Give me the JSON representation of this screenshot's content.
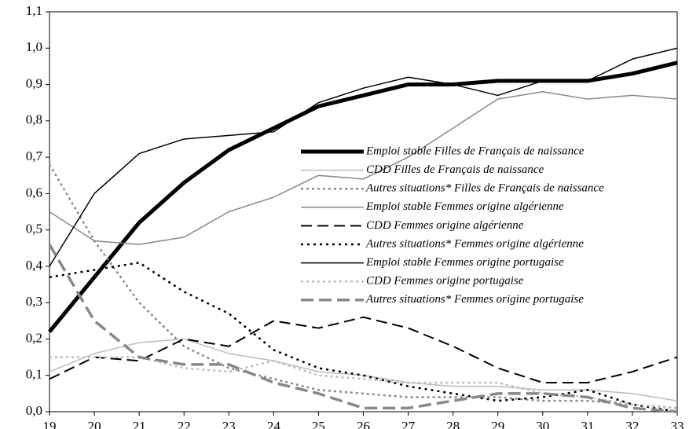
{
  "chart_data": {
    "type": "line",
    "x": [
      19,
      20,
      21,
      22,
      23,
      24,
      25,
      26,
      27,
      28,
      29,
      30,
      31,
      32,
      33
    ],
    "xlim": [
      19,
      33
    ],
    "xticks": [
      19,
      20,
      21,
      22,
      23,
      24,
      25,
      26,
      27,
      28,
      29,
      30,
      31,
      32,
      33
    ],
    "ylim": [
      0,
      1.1
    ],
    "yticks": [
      {
        "value": 0,
        "label": "0,0"
      },
      {
        "value": 0.1,
        "label": "0,1"
      },
      {
        "value": 0.2,
        "label": "0,2"
      },
      {
        "value": 0.3,
        "label": "0,3"
      },
      {
        "value": 0.4,
        "label": "0,4"
      },
      {
        "value": 0.5,
        "label": "0,5"
      },
      {
        "value": 0.6,
        "label": "0,6"
      },
      {
        "value": 0.7,
        "label": "0,7"
      },
      {
        "value": 0.8,
        "label": "0,8"
      },
      {
        "value": 0.9,
        "label": "0,9"
      },
      {
        "value": 1.0,
        "label": "1,0"
      },
      {
        "value": 1.1,
        "label": "1,1"
      }
    ],
    "legend": "right",
    "series": [
      {
        "name": "Emploi stable Filles de Français de naissance",
        "color": "#000000",
        "values": [
          0.22,
          0.37,
          0.52,
          0.63,
          0.72,
          0.78,
          0.84,
          0.87,
          0.9,
          0.9,
          0.91,
          0.91,
          0.91,
          0.93,
          0.96
        ]
      },
      {
        "name": "CDD Filles de Français de naissance",
        "color": "#bbbbbb",
        "values": [
          0.11,
          0.16,
          0.19,
          0.2,
          0.16,
          0.14,
          0.11,
          0.1,
          0.08,
          0.07,
          0.07,
          0.06,
          0.06,
          0.05,
          0.03
        ]
      },
      {
        "name": "Autres situations* Filles de Français de naissance",
        "color": "#888888",
        "values": [
          0.68,
          0.47,
          0.3,
          0.18,
          0.12,
          0.09,
          0.06,
          0.05,
          0.04,
          0.04,
          0.04,
          0.03,
          0.03,
          0.02,
          0.01
        ]
      },
      {
        "name": "Emploi stable Femmes origine algérienne",
        "color": "#888888",
        "values": [
          0.55,
          0.47,
          0.46,
          0.48,
          0.55,
          0.59,
          0.65,
          0.64,
          0.7,
          0.78,
          0.86,
          0.88,
          0.86,
          0.87,
          0.86
        ]
      },
      {
        "name": "CDD Femmes origine algérienne",
        "color": "#000000",
        "values": [
          0.09,
          0.15,
          0.14,
          0.2,
          0.18,
          0.25,
          0.23,
          0.26,
          0.23,
          0.18,
          0.12,
          0.08,
          0.08,
          0.11,
          0.15
        ]
      },
      {
        "name": "Autres situations* Femmes origine algérienne",
        "color": "#000000",
        "values": [
          0.37,
          0.39,
          0.41,
          0.33,
          0.27,
          0.17,
          0.12,
          0.1,
          0.07,
          0.05,
          0.03,
          0.04,
          0.06,
          0.02,
          0.0
        ]
      },
      {
        "name": "Emploi stable Femmes origine portugaise",
        "color": "#000000",
        "values": [
          0.4,
          0.6,
          0.71,
          0.75,
          0.76,
          0.77,
          0.85,
          0.89,
          0.92,
          0.9,
          0.87,
          0.91,
          0.91,
          0.97,
          1.0
        ]
      },
      {
        "name": "CDD Femmes origine portugaise",
        "color": "#bbbbbb",
        "values": [
          0.15,
          0.15,
          0.15,
          0.12,
          0.11,
          0.14,
          0.1,
          0.09,
          0.08,
          0.08,
          0.08,
          0.05,
          0.04,
          0.02,
          0.01
        ]
      },
      {
        "name": "Autres situations* Femmes origine portugaise",
        "color": "#888888",
        "values": [
          0.46,
          0.25,
          0.15,
          0.13,
          0.13,
          0.08,
          0.05,
          0.01,
          0.01,
          0.03,
          0.05,
          0.05,
          0.04,
          0.01,
          0.0
        ]
      }
    ]
  }
}
